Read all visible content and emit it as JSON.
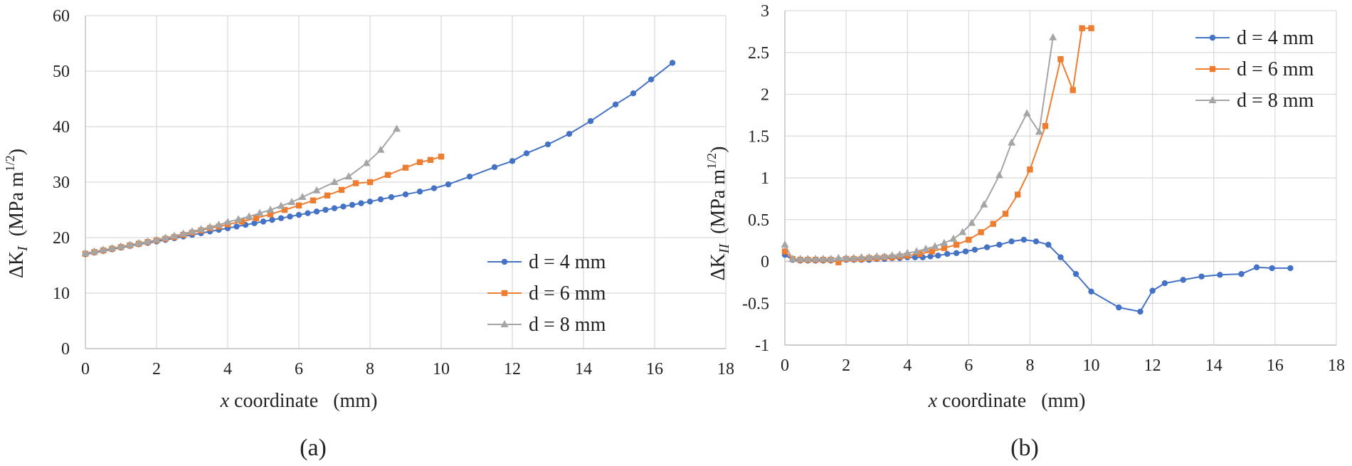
{
  "chart_data": [
    {
      "type": "line",
      "panel_label": "(a)",
      "ylabel_main": "ΔK",
      "ylabel_sub": "I",
      "ylabel_unit": "(MPa m",
      "ylabel_exp": "1/2",
      "ylabel_close": ")",
      "xlabel_var": "x",
      "xlabel_rest": " coordinate   (mm)",
      "xlim": [
        0,
        18
      ],
      "ylim": [
        0,
        60
      ],
      "xticks": [
        0,
        2,
        4,
        6,
        8,
        10,
        12,
        14,
        16,
        18
      ],
      "yticks": [
        0,
        10,
        20,
        30,
        40,
        50,
        60
      ],
      "xtick_labels": [
        "0",
        "2",
        "4",
        "6",
        "8",
        "10",
        "12",
        "14",
        "16",
        "18"
      ],
      "ytick_labels": [
        "0",
        "10",
        "20",
        "30",
        "40",
        "50",
        "60"
      ],
      "legend_position": "lower-right",
      "series": [
        {
          "name": "d = 4 mm",
          "color": "#4472c4",
          "marker": "circle",
          "x": [
            0,
            0.25,
            0.5,
            0.75,
            1,
            1.25,
            1.5,
            1.75,
            2,
            2.25,
            2.5,
            2.75,
            3,
            3.25,
            3.5,
            3.75,
            4,
            4.25,
            4.5,
            4.75,
            5,
            5.25,
            5.5,
            5.75,
            6,
            6.25,
            6.5,
            6.75,
            7,
            7.25,
            7.5,
            7.75,
            8,
            8.3,
            8.6,
            9,
            9.4,
            9.8,
            10.2,
            10.8,
            11.5,
            12.0,
            12.4,
            13.0,
            13.6,
            14.2,
            14.9,
            15.4,
            15.9,
            16.5
          ],
          "y": [
            17.0,
            17.3,
            17.6,
            17.9,
            18.2,
            18.5,
            18.8,
            19.05,
            19.3,
            19.6,
            19.9,
            20.2,
            20.5,
            20.8,
            21.1,
            21.4,
            21.7,
            22.0,
            22.3,
            22.6,
            22.9,
            23.2,
            23.5,
            23.8,
            24.1,
            24.4,
            24.7,
            25.0,
            25.3,
            25.6,
            25.9,
            26.2,
            26.5,
            26.9,
            27.3,
            27.8,
            28.3,
            28.9,
            29.6,
            31.0,
            32.7,
            33.8,
            35.2,
            36.8,
            38.7,
            41.0,
            44.0,
            46.0,
            48.5,
            51.5
          ]
        },
        {
          "name": "d = 6 mm",
          "color": "#ed7d31",
          "marker": "square",
          "x": [
            0,
            0.25,
            0.5,
            0.75,
            1,
            1.25,
            1.5,
            1.75,
            2,
            2.25,
            2.5,
            2.75,
            3,
            3.25,
            3.5,
            3.75,
            4,
            4.4,
            4.8,
            5.2,
            5.6,
            6,
            6.4,
            6.8,
            7.2,
            7.6,
            8,
            8.5,
            9,
            9.4,
            9.7,
            10
          ],
          "y": [
            17.1,
            17.4,
            17.7,
            18.0,
            18.3,
            18.6,
            18.9,
            19.2,
            19.5,
            19.8,
            20.1,
            20.5,
            20.9,
            21.3,
            21.7,
            22.0,
            22.4,
            22.9,
            23.5,
            24.2,
            25.0,
            25.8,
            26.7,
            27.6,
            28.6,
            29.8,
            30.0,
            31.3,
            32.6,
            33.6,
            34.0,
            34.6
          ]
        },
        {
          "name": "d = 8 mm",
          "color": "#a5a5a5",
          "marker": "triangle",
          "x": [
            0,
            0.25,
            0.5,
            0.75,
            1,
            1.25,
            1.5,
            1.75,
            2,
            2.25,
            2.5,
            2.75,
            3,
            3.25,
            3.5,
            3.75,
            4,
            4.3,
            4.6,
            4.9,
            5.2,
            5.5,
            5.8,
            6.1,
            6.5,
            7.0,
            7.4,
            7.9,
            8.3,
            8.75
          ],
          "y": [
            17.2,
            17.5,
            17.8,
            18.1,
            18.4,
            18.7,
            19.0,
            19.3,
            19.6,
            19.95,
            20.3,
            20.7,
            21.1,
            21.5,
            21.9,
            22.3,
            22.8,
            23.3,
            23.8,
            24.4,
            25.0,
            25.7,
            26.4,
            27.3,
            28.5,
            30.0,
            31.0,
            33.4,
            35.8,
            39.6
          ]
        }
      ]
    },
    {
      "type": "line",
      "panel_label": "(b)",
      "ylabel_main": "ΔK",
      "ylabel_sub": "II",
      "ylabel_unit": "(MPa m",
      "ylabel_exp": "1/2",
      "ylabel_close": ")",
      "xlabel_var": "x",
      "xlabel_rest": " coordinate   (mm)",
      "xlim": [
        0,
        18
      ],
      "ylim": [
        -1,
        3
      ],
      "xticks": [
        0,
        2,
        4,
        6,
        8,
        10,
        12,
        14,
        16,
        18
      ],
      "yticks": [
        -1,
        -0.5,
        0,
        0.5,
        1,
        1.5,
        2,
        2.5,
        3
      ],
      "xtick_labels": [
        "0",
        "2",
        "4",
        "6",
        "8",
        "10",
        "12",
        "14",
        "16",
        "18"
      ],
      "ytick_labels": [
        "-1",
        "-0.5",
        "0",
        "0.5",
        "1",
        "1.5",
        "2",
        "2.5",
        "3"
      ],
      "legend_position": "top-right",
      "series": [
        {
          "name": "d = 4 mm",
          "color": "#4472c4",
          "marker": "circle",
          "x": [
            0,
            0.25,
            0.5,
            0.75,
            1,
            1.25,
            1.5,
            1.75,
            2,
            2.25,
            2.5,
            2.75,
            3,
            3.25,
            3.5,
            3.75,
            4,
            4.25,
            4.5,
            4.75,
            5,
            5.3,
            5.6,
            5.9,
            6.2,
            6.6,
            7.0,
            7.4,
            7.8,
            8.2,
            8.6,
            9.0,
            9.5,
            10.0,
            10.9,
            11.6,
            12.0,
            12.4,
            13.0,
            13.6,
            14.2,
            14.9,
            15.4,
            15.9,
            16.5
          ],
          "y": [
            0.08,
            0.02,
            0.01,
            0.01,
            0.01,
            0.01,
            0.01,
            0.01,
            0.02,
            0.02,
            0.02,
            0.02,
            0.03,
            0.03,
            0.04,
            0.04,
            0.05,
            0.05,
            0.05,
            0.06,
            0.07,
            0.09,
            0.1,
            0.12,
            0.14,
            0.17,
            0.2,
            0.24,
            0.26,
            0.24,
            0.2,
            0.05,
            -0.15,
            -0.36,
            -0.55,
            -0.6,
            -0.35,
            -0.26,
            -0.22,
            -0.18,
            -0.16,
            -0.15,
            -0.07,
            -0.08,
            -0.08
          ]
        },
        {
          "name": "d = 6 mm",
          "color": "#ed7d31",
          "marker": "square",
          "x": [
            0,
            0.25,
            0.5,
            0.75,
            1,
            1.25,
            1.5,
            1.75,
            2,
            2.25,
            2.5,
            2.75,
            3,
            3.25,
            3.5,
            3.75,
            4,
            4.4,
            4.8,
            5.2,
            5.6,
            6,
            6.4,
            6.8,
            7.2,
            7.6,
            8,
            8.5,
            9,
            9.4,
            9.7,
            10
          ],
          "y": [
            0.12,
            0.03,
            0.02,
            0.02,
            0.02,
            0.02,
            0.02,
            -0.01,
            0.03,
            0.03,
            0.03,
            0.04,
            0.04,
            0.05,
            0.05,
            0.06,
            0.07,
            0.09,
            0.12,
            0.16,
            0.2,
            0.26,
            0.35,
            0.45,
            0.57,
            0.8,
            1.1,
            1.62,
            2.42,
            2.05,
            2.79,
            2.79
          ]
        },
        {
          "name": "d = 8 mm",
          "color": "#a5a5a5",
          "marker": "triangle",
          "x": [
            0,
            0.25,
            0.5,
            0.75,
            1,
            1.25,
            1.5,
            1.75,
            2,
            2.25,
            2.5,
            2.75,
            3,
            3.25,
            3.5,
            3.75,
            4,
            4.3,
            4.6,
            4.9,
            5.2,
            5.5,
            5.8,
            6.1,
            6.5,
            7.0,
            7.4,
            7.9,
            8.3,
            8.75
          ],
          "y": [
            0.2,
            0.03,
            0.03,
            0.03,
            0.03,
            0.03,
            0.03,
            0.04,
            0.04,
            0.04,
            0.05,
            0.05,
            0.06,
            0.06,
            0.07,
            0.08,
            0.1,
            0.12,
            0.15,
            0.18,
            0.22,
            0.27,
            0.35,
            0.46,
            0.68,
            1.03,
            1.42,
            1.77,
            1.55,
            2.68
          ]
        }
      ]
    }
  ]
}
